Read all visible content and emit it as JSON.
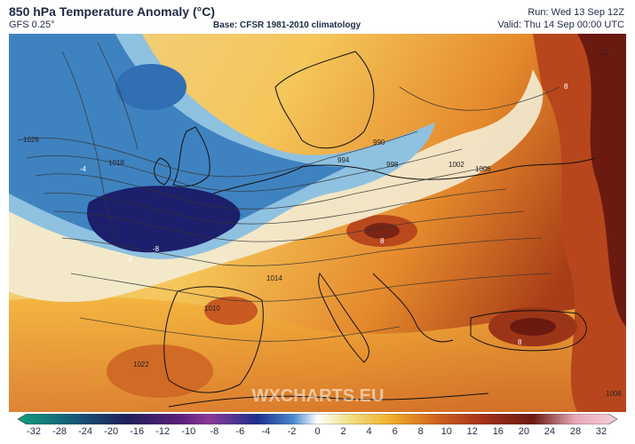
{
  "header": {
    "title": "850 hPa Temperature Anomaly (°C)",
    "model": "GFS 0.25°",
    "base": "Base: CFSR 1981-2010 climatology",
    "run": "Run: Wed 13 Sep 12Z",
    "valid": "Valid: Thu 14 Sep 00:00 UTC"
  },
  "watermark": "WXCHARTS.EU",
  "isobar_labels": [
    "990",
    "994",
    "998",
    "1002",
    "1006",
    "1010",
    "1014",
    "1018",
    "1022",
    "1026",
    "1006"
  ],
  "anomaly_labels": [
    "-8",
    "-4",
    "-4",
    "8",
    "8",
    "8",
    "12"
  ],
  "colors": {
    "cold_deep": "#1c1f6b",
    "cold": "#2f6fb2",
    "cool": "#8fc1e0",
    "neutral": "#f2ead0",
    "warm": "#f2b02a",
    "hot": "#c0501f",
    "very_hot": "#6b1a10"
  },
  "legend": {
    "ticks": [
      "-32",
      "-28",
      "-24",
      "-20",
      "-16",
      "-12",
      "-10",
      "-8",
      "-6",
      "-4",
      "-2",
      "0",
      "2",
      "4",
      "6",
      "8",
      "10",
      "12",
      "16",
      "20",
      "24",
      "28",
      "32"
    ]
  }
}
